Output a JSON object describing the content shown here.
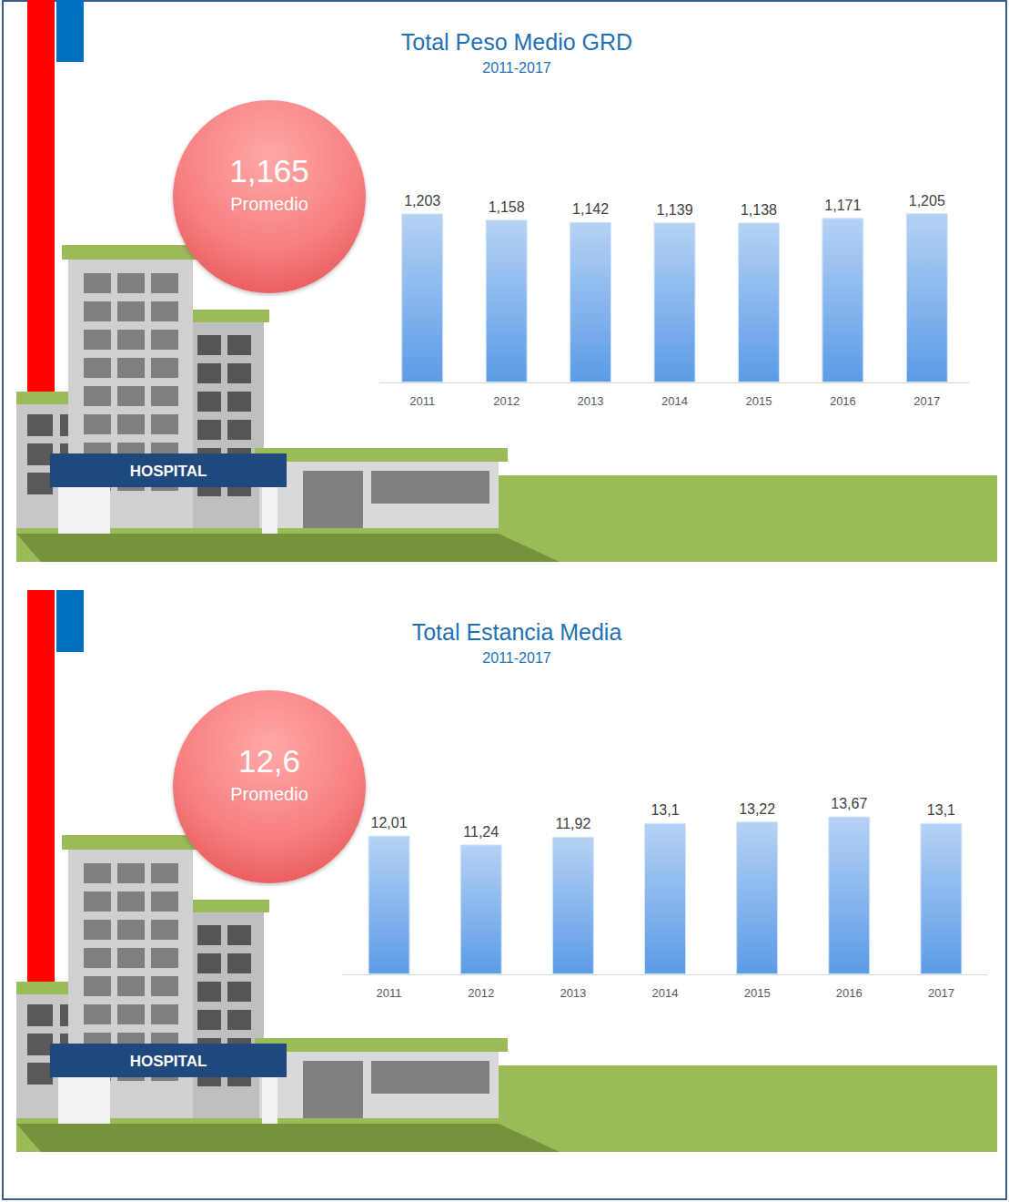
{
  "chart_data": [
    {
      "type": "bar",
      "title": "Total Peso Medio GRD",
      "subtitle": "2011-2017",
      "categories": [
        "2011",
        "2012",
        "2013",
        "2014",
        "2015",
        "2016",
        "2017"
      ],
      "values": [
        1.203,
        1.158,
        1.142,
        1.139,
        1.138,
        1.171,
        1.205
      ],
      "value_labels": [
        "1,203",
        "1,158",
        "1,142",
        "1,139",
        "1,138",
        "1,171",
        "1,205"
      ],
      "color": "#5b9be6",
      "ylim": [
        0,
        1.4
      ],
      "grid": false,
      "data_labels": true,
      "tick_labels": "x",
      "average_label": "1,165",
      "average_text": "Promedio",
      "sign": "HOSPITAL"
    },
    {
      "type": "bar",
      "title": "Total Estancia Media",
      "subtitle": "2011-2017",
      "categories": [
        "2011",
        "2012",
        "2013",
        "2014",
        "2015",
        "2016",
        "2017"
      ],
      "values": [
        12.01,
        11.24,
        11.92,
        13.1,
        13.22,
        13.67,
        13.1
      ],
      "value_labels": [
        "12,01",
        "11,24",
        "11,92",
        "13,1",
        "13,22",
        "13,67",
        "13,1"
      ],
      "color": "#5b9be6",
      "ylim": [
        0,
        16
      ],
      "grid": false,
      "data_labels": true,
      "tick_labels": "x",
      "average_label": "12,6",
      "average_text": "Promedio",
      "sign": "HOSPITAL"
    }
  ]
}
